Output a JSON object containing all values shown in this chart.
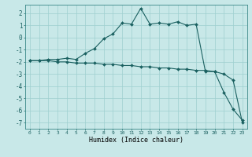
{
  "title": "",
  "xlabel": "Humidex (Indice chaleur)",
  "bg_color": "#c8e8e8",
  "line_color": "#1a6060",
  "xlim": [
    -0.5,
    23.5
  ],
  "ylim": [
    -7.5,
    2.7
  ],
  "xticks": [
    0,
    1,
    2,
    3,
    4,
    5,
    6,
    7,
    8,
    9,
    10,
    11,
    12,
    13,
    14,
    15,
    16,
    17,
    18,
    19,
    20,
    21,
    22,
    23
  ],
  "yticks": [
    2,
    1,
    0,
    -1,
    -2,
    -3,
    -4,
    -5,
    -6,
    -7
  ],
  "line1_x": [
    0,
    1,
    2,
    3,
    4,
    5,
    6,
    7,
    8,
    9,
    10,
    11,
    12,
    13,
    14,
    15,
    16,
    17,
    18,
    19,
    20,
    21,
    22,
    23
  ],
  "line1_y": [
    -1.9,
    -1.9,
    -1.8,
    -1.8,
    -1.7,
    -1.8,
    -1.3,
    -0.9,
    -0.1,
    0.3,
    1.2,
    1.1,
    2.4,
    1.1,
    1.2,
    1.1,
    1.3,
    1.0,
    1.1,
    -2.8,
    -2.8,
    -4.5,
    -5.9,
    -6.8
  ],
  "line2_x": [
    0,
    1,
    2,
    3,
    4,
    5,
    6,
    7,
    8,
    9,
    10,
    11,
    12,
    13,
    14,
    15,
    16,
    17,
    18,
    19,
    20,
    21,
    22,
    23
  ],
  "line2_y": [
    -1.9,
    -1.9,
    -1.9,
    -2.0,
    -2.0,
    -2.1,
    -2.1,
    -2.1,
    -2.2,
    -2.2,
    -2.3,
    -2.3,
    -2.4,
    -2.4,
    -2.5,
    -2.5,
    -2.6,
    -2.6,
    -2.7,
    -2.7,
    -2.8,
    -3.0,
    -3.5,
    -7.0
  ],
  "marker": "D",
  "markersize": 2,
  "linewidth": 0.8,
  "grid_color": "#9ecfcf",
  "xlabel_fontsize": 6,
  "xtick_fontsize": 4.5,
  "ytick_fontsize": 5.5
}
